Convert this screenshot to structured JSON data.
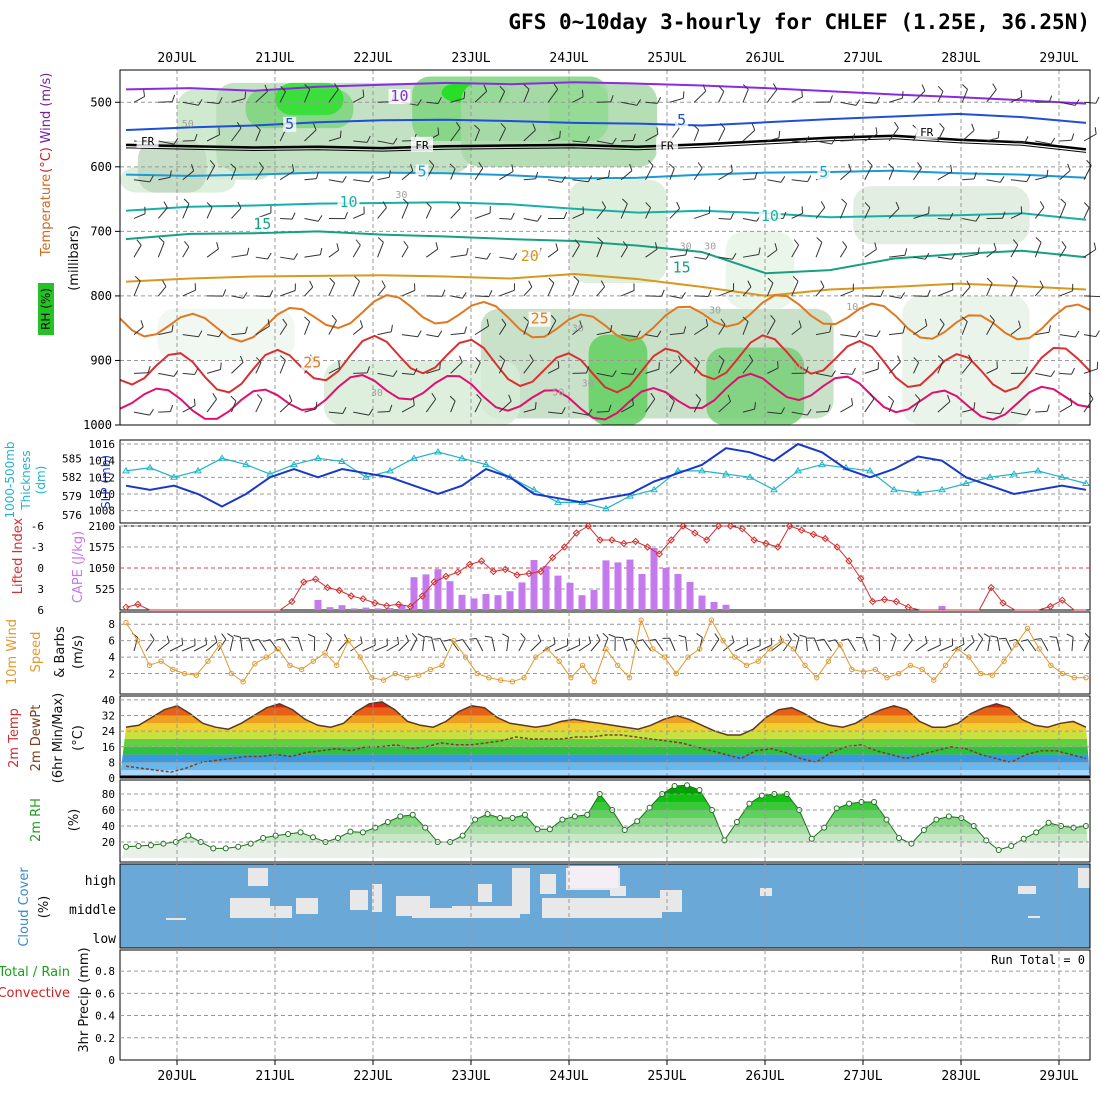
{
  "title": "GFS 0~10day 3-hourly for CHLEF (1.25E, 36.25N)",
  "chart_data": [
    {
      "type": "line",
      "panel": "upper-air",
      "xlabels": [
        "20JUL",
        "21JUL",
        "22JUL",
        "23JUL",
        "24JUL",
        "25JUL",
        "26JUL",
        "27JUL",
        "28JUL",
        "29JUL"
      ],
      "ylabel_parts": [
        "RH (%)",
        "Temperature",
        "(°C)",
        "Wind (m/s)",
        "(millibars)"
      ],
      "ylabel_colors": [
        "#111111",
        "#d06820",
        "#cc2222",
        "#7a1fa0",
        "#111111"
      ],
      "yticks": [
        500,
        600,
        700,
        800,
        900,
        1000
      ],
      "ylim": [
        450,
        1000
      ],
      "isotherm_labels": [
        {
          "text": "10",
          "x": 2.27,
          "p": 495,
          "color": "#8a2be2"
        },
        {
          "text": "5",
          "x": 1.15,
          "p": 538,
          "color": "#1f4fd6"
        },
        {
          "text": "5",
          "x": 5.15,
          "p": 532,
          "color": "#1f4fd6"
        },
        {
          "text": "FR",
          "x": -0.3,
          "p": 563,
          "color": "#000000"
        },
        {
          "text": "FR",
          "x": 2.5,
          "p": 569,
          "color": "#000000"
        },
        {
          "text": "FR",
          "x": 5.0,
          "p": 570,
          "color": "#000000"
        },
        {
          "text": "FR",
          "x": 7.65,
          "p": 549,
          "color": "#000000"
        },
        {
          "text": "5",
          "x": 2.5,
          "p": 612,
          "color": "#1a9ad6"
        },
        {
          "text": "5",
          "x": 6.6,
          "p": 613,
          "color": "#1a9ad6"
        },
        {
          "text": "10",
          "x": 1.75,
          "p": 659,
          "color": "#18b0a6"
        },
        {
          "text": "10",
          "x": 6.05,
          "p": 681,
          "color": "#18b0a6"
        },
        {
          "text": "15",
          "x": 0.87,
          "p": 693,
          "color": "#16a080"
        },
        {
          "text": "15",
          "x": 5.15,
          "p": 761,
          "color": "#16a080"
        },
        {
          "text": "20",
          "x": 3.6,
          "p": 743,
          "color": "#d89820"
        },
        {
          "text": "25",
          "x": 3.7,
          "p": 840,
          "color": "#e07820"
        },
        {
          "text": "25",
          "x": 1.38,
          "p": 908,
          "color": "#e07820"
        }
      ],
      "rh_labels": [
        "50",
        "30",
        "30",
        "30",
        "10",
        "30",
        "30",
        "30",
        "10",
        "30",
        "50"
      ],
      "series": [
        {
          "name": "10",
          "color": "#8a2be2",
          "values": [
            480,
            478,
            482,
            476,
            473,
            470,
            472,
            469,
            471,
            474,
            478,
            483,
            488,
            492,
            497,
            502
          ]
        },
        {
          "name": "5",
          "color": "#1f4fd6",
          "values": [
            543,
            539,
            536,
            531,
            528,
            527,
            529,
            532,
            533,
            536,
            531,
            526,
            522,
            518,
            523,
            532
          ]
        },
        {
          "name": "FR",
          "color": "#000000",
          "values": [
            566,
            568,
            570,
            569,
            571,
            568,
            567,
            566,
            569,
            565,
            560,
            555,
            552,
            558,
            562,
            573
          ]
        },
        {
          "name": "5",
          "color": "#1a9ad6",
          "values": [
            612,
            614,
            612,
            609,
            609,
            610,
            613,
            618,
            617,
            612,
            609,
            608,
            606,
            610,
            612,
            617
          ]
        },
        {
          "name": "10",
          "color": "#18b0a6",
          "values": [
            668,
            662,
            660,
            657,
            656,
            655,
            658,
            665,
            671,
            668,
            672,
            678,
            676,
            675,
            672,
            682
          ]
        },
        {
          "name": "15",
          "color": "#16a080",
          "values": [
            712,
            704,
            703,
            700,
            705,
            708,
            712,
            715,
            722,
            732,
            765,
            760,
            742,
            735,
            730,
            740
          ]
        },
        {
          "name": "20",
          "color": "#d89820",
          "values": [
            778,
            773,
            770,
            769,
            768,
            770,
            773,
            766,
            774,
            786,
            800,
            790,
            786,
            781,
            785,
            790
          ]
        }
      ]
    },
    {
      "type": "line",
      "panel": "slp-thickness",
      "ylabel_left": [
        "1000-500mb",
        "Thickness",
        "(dm)"
      ],
      "ylabel_right": "SLP (mb)",
      "yticks_left": [
        576,
        579,
        582,
        585
      ],
      "yticks_right": [
        1008,
        1010,
        1012,
        1014,
        1016
      ],
      "series": [
        {
          "name": "Thickness",
          "color": "#20b4c8",
          "values": [
            583,
            583.5,
            582,
            583,
            585,
            584,
            582.5,
            584,
            585,
            584.5,
            582,
            583,
            585,
            586,
            585,
            584,
            582,
            580,
            578,
            578,
            577,
            579,
            580,
            583,
            583,
            582.5,
            582,
            580,
            583,
            584,
            583.5,
            583,
            580,
            579.5,
            580,
            581,
            582,
            582.5,
            583,
            582,
            581
          ]
        },
        {
          "name": "SLP",
          "color": "#1a38c8",
          "values": [
            1011,
            1010.5,
            1011,
            1010,
            1008.5,
            1010,
            1012,
            1013,
            1012,
            1013,
            1012.5,
            1012,
            1011,
            1010,
            1011,
            1013,
            1012,
            1010,
            1009.5,
            1009,
            1009.5,
            1010,
            1011.5,
            1012.5,
            1013.5,
            1015.5,
            1015,
            1014,
            1016,
            1015,
            1013,
            1012,
            1013,
            1014.5,
            1014,
            1012,
            1011,
            1010,
            1010.5,
            1011,
            1010.5
          ]
        }
      ]
    },
    {
      "type": "bar",
      "panel": "cape-li",
      "ylabel_left": [
        "Lifted Index"
      ],
      "ylabel_right": [
        "CAPE (J/kg)"
      ],
      "yticks_left": [
        -6,
        -3,
        0,
        3,
        6
      ],
      "yticks_right": [
        525,
        1050,
        1575,
        2100
      ],
      "bar_color": "#c479ec",
      "cape_values": [
        0,
        0,
        0,
        0,
        0,
        0,
        0,
        0,
        0,
        0,
        0,
        0,
        0,
        0,
        0,
        0,
        250,
        70,
        120,
        40,
        60,
        40,
        50,
        130,
        820,
        890,
        1020,
        720,
        380,
        290,
        400,
        370,
        470,
        690,
        1250,
        1100,
        860,
        680,
        370,
        500,
        1240,
        1190,
        1260,
        900,
        1550,
        1050,
        900,
        700,
        360,
        200,
        130,
        0,
        0,
        0,
        0,
        0,
        0,
        0,
        0,
        0,
        0,
        0,
        0,
        0,
        0,
        0,
        0,
        0,
        100,
        0,
        0,
        0,
        0,
        0,
        0,
        0,
        0,
        0,
        0,
        0,
        0
      ],
      "li_values": [
        5.6,
        5.2,
        6,
        6,
        6,
        6,
        6,
        6,
        6,
        6,
        6,
        6,
        6,
        6,
        4.8,
        2,
        1.6,
        2.8,
        3.2,
        4,
        4.4,
        5,
        5.4,
        5.2,
        5.5,
        4,
        2,
        1.2,
        0.6,
        -0.5,
        -1,
        0.5,
        0.2,
        1,
        0.8,
        0.5,
        -1.5,
        -3,
        -5,
        -6,
        -4,
        -4,
        -3.5,
        -3.8,
        -3,
        -2,
        -4,
        -6,
        -5,
        -4,
        -6,
        -6,
        -5.6,
        -4,
        -3.5,
        -3,
        -6,
        -5.4,
        -4.8,
        -4.2,
        -3,
        -1,
        1.5,
        4.8,
        4.5,
        4.8,
        5.6,
        6,
        6,
        6,
        6,
        6,
        6,
        2.8,
        5,
        6,
        6,
        6,
        5.5,
        4.6,
        6,
        6
      ]
    },
    {
      "type": "line",
      "panel": "wind10m",
      "ylabel": [
        "10m Wind",
        "Speed",
        "& Barbs",
        "(m/s)"
      ],
      "yticks": [
        2,
        4,
        6,
        8
      ],
      "series": [
        {
          "name": "Speed",
          "color": "#e09a30",
          "values": [
            8.2,
            6,
            3,
            3.5,
            2.5,
            2,
            1.8,
            3.5,
            5.5,
            2,
            1,
            3.2,
            4,
            5,
            3,
            2.5,
            3.5,
            4.5,
            3,
            6,
            4,
            1.5,
            1.2,
            2,
            1.5,
            1.8,
            2.5,
            3,
            6,
            4,
            2,
            1.5,
            1.2,
            1,
            1.5,
            4,
            5,
            3.5,
            1.5,
            3,
            1,
            5,
            3,
            1.5,
            8.5,
            5,
            4,
            2,
            4,
            5,
            8.5,
            6,
            4,
            3,
            3.5,
            5,
            6,
            5,
            3,
            1.5,
            3.5,
            5.5,
            2.5,
            2.2,
            2.5,
            1.5,
            2,
            3,
            2.5,
            1.2,
            3,
            5,
            4,
            2,
            1.8,
            3.5,
            5.5,
            7.5,
            5,
            3,
            2,
            1.5,
            1.5
          ]
        }
      ]
    },
    {
      "type": "area",
      "panel": "temp2m",
      "ylabel": [
        "2m Temp",
        "2m DewPt",
        "(6hr Min/Max)",
        "(°C)"
      ],
      "yticks": [
        0,
        8,
        16,
        24,
        32,
        40
      ],
      "temp_values": [
        26,
        27,
        31,
        35,
        37,
        33,
        28,
        26,
        25,
        28,
        32,
        36,
        38,
        35,
        30,
        27,
        26,
        28,
        34,
        38,
        39,
        35,
        29,
        27,
        26,
        29,
        34,
        37,
        36,
        31,
        28,
        27,
        26,
        27,
        29,
        30,
        29,
        28,
        27,
        26,
        25,
        27,
        30,
        32,
        30,
        27,
        24,
        22,
        22,
        25,
        31,
        35,
        36,
        33,
        29,
        27,
        26,
        28,
        32,
        35,
        37,
        35,
        29,
        26,
        26,
        28,
        33,
        36,
        38,
        36,
        30,
        27,
        26,
        28,
        29,
        26
      ],
      "dewpt_values": [
        6,
        5,
        4,
        3,
        5,
        8,
        9,
        10,
        11,
        11,
        12,
        11,
        13,
        14,
        15,
        14,
        16,
        16,
        17,
        15,
        16,
        18,
        17,
        17,
        18,
        19,
        21,
        20,
        20,
        20,
        21,
        21,
        22,
        22,
        21,
        20,
        19,
        18,
        16,
        14,
        12,
        10,
        14,
        15,
        13,
        10,
        8,
        13,
        16,
        17,
        14,
        12,
        10,
        12,
        14,
        16,
        15,
        12,
        10,
        8,
        12,
        14,
        14,
        12,
        10
      ]
    },
    {
      "type": "area",
      "panel": "rh2m",
      "ylabel": [
        "2m RH",
        "(%)"
      ],
      "yticks": [
        20,
        40,
        60,
        80
      ],
      "values": [
        14,
        15,
        16,
        18,
        20,
        28,
        20,
        12,
        12,
        14,
        18,
        25,
        28,
        30,
        32,
        26,
        20,
        25,
        33,
        32,
        38,
        45,
        52,
        54,
        38,
        20,
        20,
        28,
        48,
        55,
        50,
        50,
        54,
        36,
        36,
        48,
        52,
        54,
        80,
        60,
        35,
        46,
        63,
        80,
        90,
        91,
        85,
        60,
        22,
        45,
        68,
        78,
        80,
        80,
        60,
        24,
        38,
        62,
        68,
        70,
        70,
        48,
        25,
        18,
        35,
        48,
        52,
        50,
        40,
        22,
        10,
        15,
        24,
        32,
        44,
        40,
        38,
        40
      ]
    },
    {
      "type": "heatmap",
      "panel": "cloud-cover",
      "ylabel": [
        "Cloud Cover",
        "(%)"
      ],
      "ytick_labels": [
        "high",
        "middle",
        "low"
      ]
    },
    {
      "type": "bar",
      "panel": "precip",
      "ylabel": [
        "Total / Rain",
        "Convective",
        "3hr Precip (mm)"
      ],
      "ylabel_colors": [
        "#1aa01a",
        "#d02020",
        "#111111"
      ],
      "yticks": [
        0,
        0.2,
        0.4,
        0.6,
        0.8
      ],
      "annotation": "Run Total = 0",
      "values": []
    }
  ]
}
